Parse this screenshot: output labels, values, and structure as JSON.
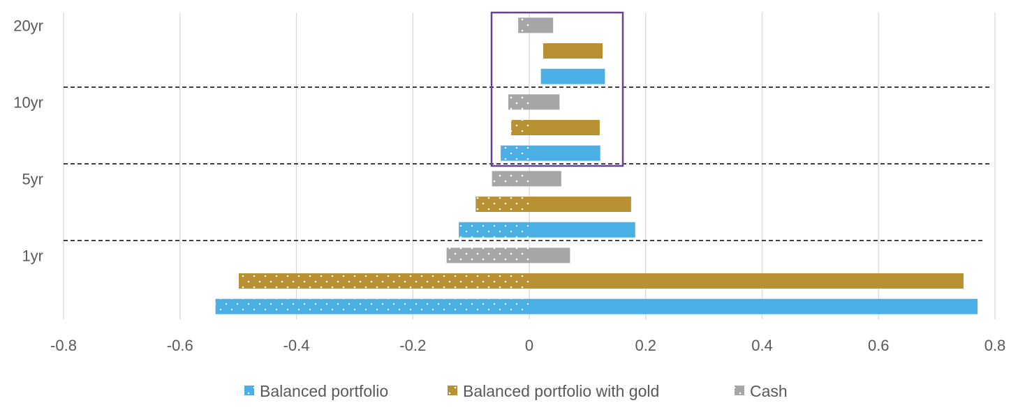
{
  "chart_data": {
    "type": "bar",
    "orientation": "horizontal",
    "style": "floating range bars (negative side dotted, positive side solid)",
    "categories": [
      "20yr",
      "10yr",
      "5yr",
      "1yr"
    ],
    "series": [
      {
        "name": "Cash",
        "color": "#A6A5A8",
        "min": [
          -0.019,
          -0.036,
          -0.064,
          -0.142
        ],
        "max": [
          0.041,
          0.052,
          0.055,
          0.07
        ]
      },
      {
        "name": "Balanced portfolio with gold",
        "color": "#B89133",
        "min": [
          0.024,
          -0.031,
          -0.092,
          -0.499
        ],
        "max": [
          0.126,
          0.121,
          0.175,
          0.746
        ]
      },
      {
        "name": "Balanced portfolio",
        "color": "#4AAFE5",
        "min": [
          0.02,
          -0.049,
          -0.121,
          -0.539
        ],
        "max": [
          0.13,
          0.122,
          0.182,
          0.77
        ]
      }
    ],
    "legend_order": [
      "Balanced portfolio",
      "Balanced portfolio with gold",
      "Cash"
    ],
    "xlim": [
      -0.8,
      0.8
    ],
    "xticks": [
      "-0.8",
      "-0.6",
      "-0.4",
      "-0.2",
      "0",
      "0.2",
      "0.4",
      "0.6",
      "0.8"
    ],
    "grid": "vertical",
    "legend": "bottom",
    "highlight_box": {
      "color": "#6B3FA0",
      "categories": [
        "20yr",
        "10yr"
      ]
    }
  }
}
